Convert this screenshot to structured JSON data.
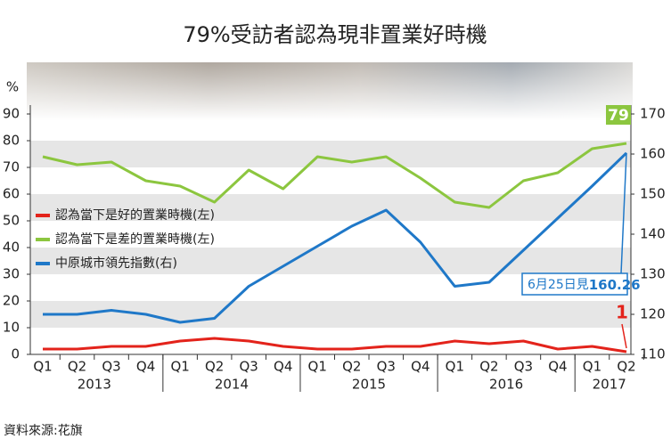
{
  "chart_data": {
    "type": "line",
    "title": "79%受訪者認為現非置業好時機",
    "y_label": "%",
    "source": "資料來源:花旗",
    "annotation": "6月25日見",
    "categories": [
      "Q1",
      "Q2",
      "Q3",
      "Q4",
      "Q1",
      "Q2",
      "Q3",
      "Q4",
      "Q1",
      "Q2",
      "Q3",
      "Q4",
      "Q1",
      "Q2",
      "Q3",
      "Q4",
      "Q1",
      "Q2"
    ],
    "years": [
      "2013",
      "2014",
      "2015",
      "2016",
      "2017"
    ],
    "ylim": [
      0,
      90
    ],
    "yticks": [
      0,
      10,
      20,
      30,
      40,
      50,
      60,
      70,
      80,
      90
    ],
    "y2lim": [
      110,
      170
    ],
    "y2ticks": [
      110,
      120,
      130,
      140,
      150,
      160,
      170
    ],
    "grid": true,
    "legend": "center-left",
    "series": [
      {
        "name": "認為當下是好的置業時機(左)",
        "color": "#e3231b",
        "values": [
          2,
          2,
          3,
          3,
          5,
          6,
          5,
          3,
          2,
          2,
          3,
          3,
          5,
          4,
          5,
          2,
          3,
          1
        ]
      },
      {
        "name": "認為當下是差的置業時機(左)",
        "color": "#8cc63f",
        "values": [
          74,
          71,
          72,
          65,
          63,
          57,
          69,
          62,
          74,
          72,
          74,
          66,
          57,
          55,
          65,
          68,
          77,
          79
        ]
      },
      {
        "name": "中原城市領先指數(右)",
        "color": "#1f78c8",
        "axis": "y2",
        "values": [
          120,
          120,
          121,
          120,
          118,
          119,
          127,
          132,
          137,
          142,
          146,
          138,
          127,
          128,
          136,
          144,
          152,
          160.26
        ]
      }
    ]
  }
}
